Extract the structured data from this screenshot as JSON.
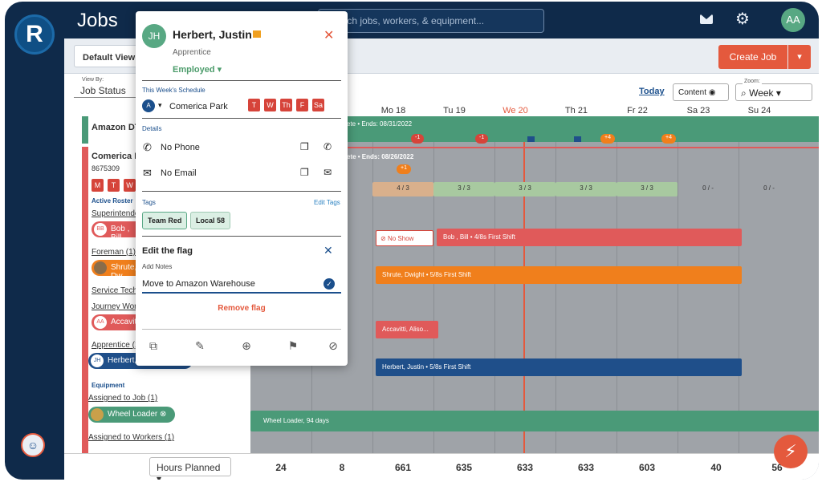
{
  "app": {
    "logo_letter": "R",
    "title": "Jobs",
    "user_initials": "AA"
  },
  "search": {
    "placeholder": "Search jobs, workers, & equipment..."
  },
  "icons": {
    "mail": "mail-icon",
    "gear": "gear-icon",
    "flag": "flag-icon",
    "close": "close-icon"
  },
  "toolbar": {
    "view_label": "Default View",
    "create_label": "Create Job"
  },
  "viewby": {
    "label": "View By:",
    "value": "Job Status"
  },
  "controls": {
    "today": "Today",
    "content": "Content",
    "zoom_label": "Zoom:",
    "zoom_value": "Week"
  },
  "days": [
    "Mo 18",
    "Tu 19",
    "We 20",
    "Th 21",
    "Fr 22",
    "Sa 23",
    "Su 24"
  ],
  "jobs": [
    {
      "name": "Amazon DTW",
      "ends": "ete • Ends: 08/31/2022"
    },
    {
      "name": "Comerica Pa",
      "number": "8675309",
      "ends": "ete • Ends: 08/26/2022"
    }
  ],
  "left": {
    "day_letters": [
      "M",
      "T",
      "W"
    ],
    "roster_title": "Active Roster",
    "superintendent": "Superintenden",
    "foreman": "Foreman (1)",
    "service_tech": "Service Tech (0",
    "journey": "Journey Worke",
    "apprentice": "Apprentice (1)",
    "equipment_title": "Equipment",
    "assigned_job": "Assigned to Job (1)",
    "assigned_workers": "Assigned to Workers (1)",
    "chips": [
      {
        "initials": "BB",
        "label": "Bob , Bill"
      },
      {
        "initials": "",
        "label": "Shrute, Dw"
      },
      {
        "initials": "AA",
        "label": "Accavitti, "
      },
      {
        "initials": "JH",
        "label": "Herbert, Ju"
      },
      {
        "initials": "",
        "label": "Wheel Loader"
      }
    ]
  },
  "badges": [
    "-1",
    "-1",
    "+4",
    "+4",
    "+1"
  ],
  "capacity": [
    "4 / 3",
    "3 / 3",
    "3 / 3",
    "3 / 3",
    "3 / 3",
    "0 / -",
    "0 / -"
  ],
  "bars": {
    "no_show": "No Show",
    "bob": "Bob , Bill • 4/8s First Shift",
    "shrute": "Shrute, Dwight • 5/8s First Shift",
    "accavitti": "Accavitti, Aliso...",
    "herbert": "Herbert, Justin • 5/8s First Shift",
    "wheel": "Wheel Loader, 94 days"
  },
  "bottom": {
    "hours_label": "Hours Planned",
    "totals": [
      "24",
      "8",
      "661",
      "635",
      "633",
      "633",
      "603",
      "40",
      "56"
    ]
  },
  "popup": {
    "initials": "JH",
    "name": "Herbert, Justin",
    "role": "Apprentice",
    "status": "Employed",
    "schedule_label": "This Week's Schedule",
    "schedule_marker": "A",
    "schedule_site": "Comerica Park",
    "schedule_days": [
      "T",
      "W",
      "Th",
      "F",
      "Sa"
    ],
    "details_label": "Details",
    "phone": "No Phone",
    "email": "No Email",
    "tags_label": "Tags",
    "edit_tags": "Edit Tags",
    "tags": [
      "Team Red",
      "Local 58"
    ],
    "flag_title": "Edit the flag",
    "notes_label": "Add Notes",
    "notes_value": "Move to Amazon Warehouse",
    "remove_flag": "Remove flag"
  },
  "colors": {
    "navy": "#0f2a4a",
    "accent": "#e4593d",
    "green": "#4a9a78",
    "red": "#e05a5a",
    "orange": "#f07f1c",
    "blue": "#1f4f8a"
  }
}
